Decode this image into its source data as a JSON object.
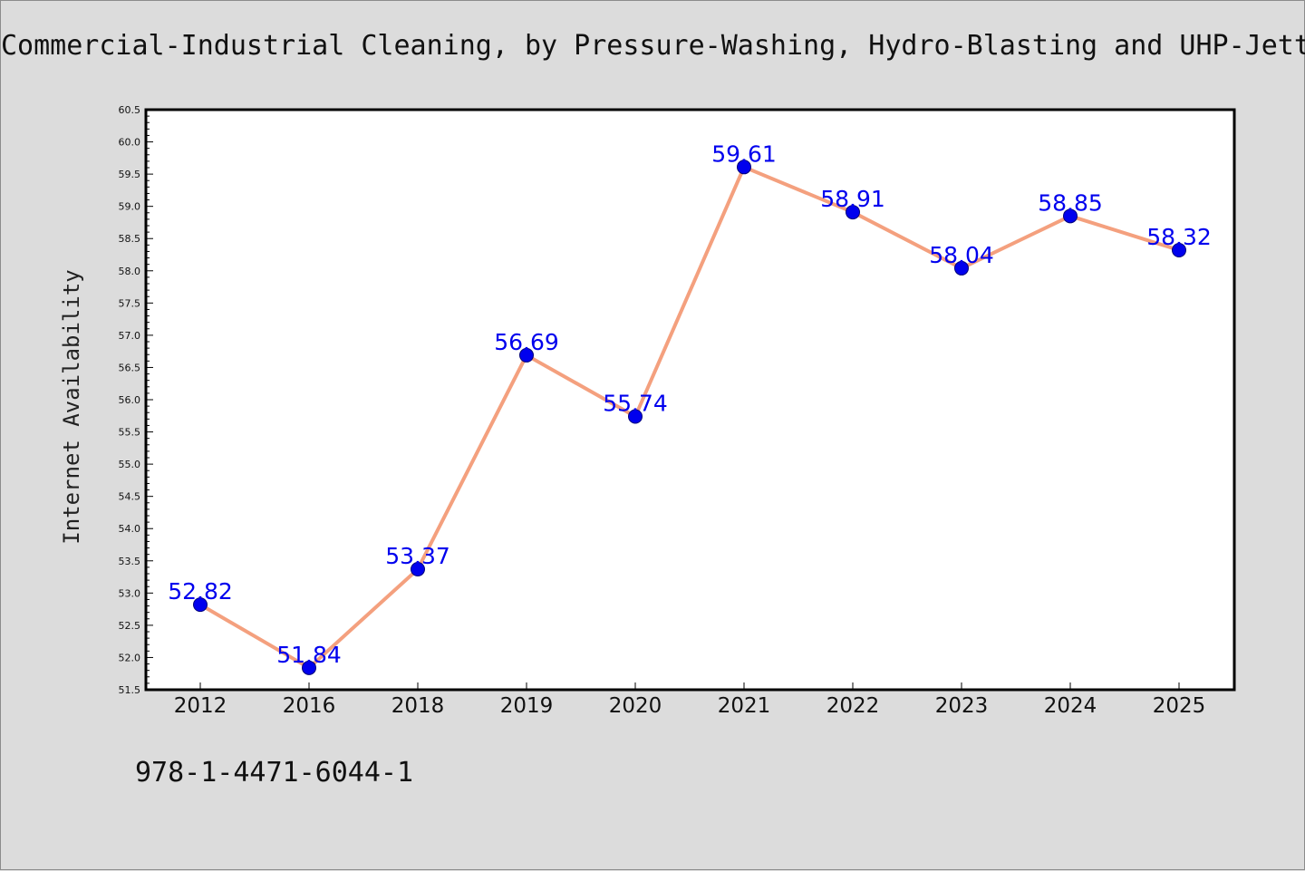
{
  "chart_data": {
    "type": "line",
    "title": "Commercial-Industrial Cleaning, by Pressure-Washing, Hydro-Blasting and UHP-Jett",
    "xlabel": "",
    "ylabel": "Internet Availability",
    "categories": [
      "2012",
      "2016",
      "2018",
      "2019",
      "2020",
      "2021",
      "2022",
      "2023",
      "2024",
      "2025"
    ],
    "series": [
      {
        "values": [
          52.82,
          51.84,
          53.37,
          56.69,
          55.74,
          59.61,
          58.91,
          58.04,
          58.85,
          58.32
        ],
        "line_color": "#f4a07e",
        "marker_color": "#0000ee"
      }
    ],
    "data_labels": [
      "52.82",
      "51.84",
      "53.37",
      "56.69",
      "55.74",
      "59.61",
      "58.91",
      "58.04",
      "58.85",
      "58.32"
    ],
    "ylim": [
      51.5,
      60.5
    ],
    "yticks": [
      "51.5",
      "52.0",
      "52.5",
      "53.0",
      "53.5",
      "54.0",
      "54.5",
      "55.0",
      "55.5",
      "56.0",
      "56.5",
      "57.0",
      "57.5",
      "58.0",
      "58.5",
      "59.0",
      "59.5",
      "60.0",
      "60.5"
    ],
    "grid": false,
    "label_color": "#0000ee"
  },
  "footer_text": "978-1-4471-6044-1"
}
